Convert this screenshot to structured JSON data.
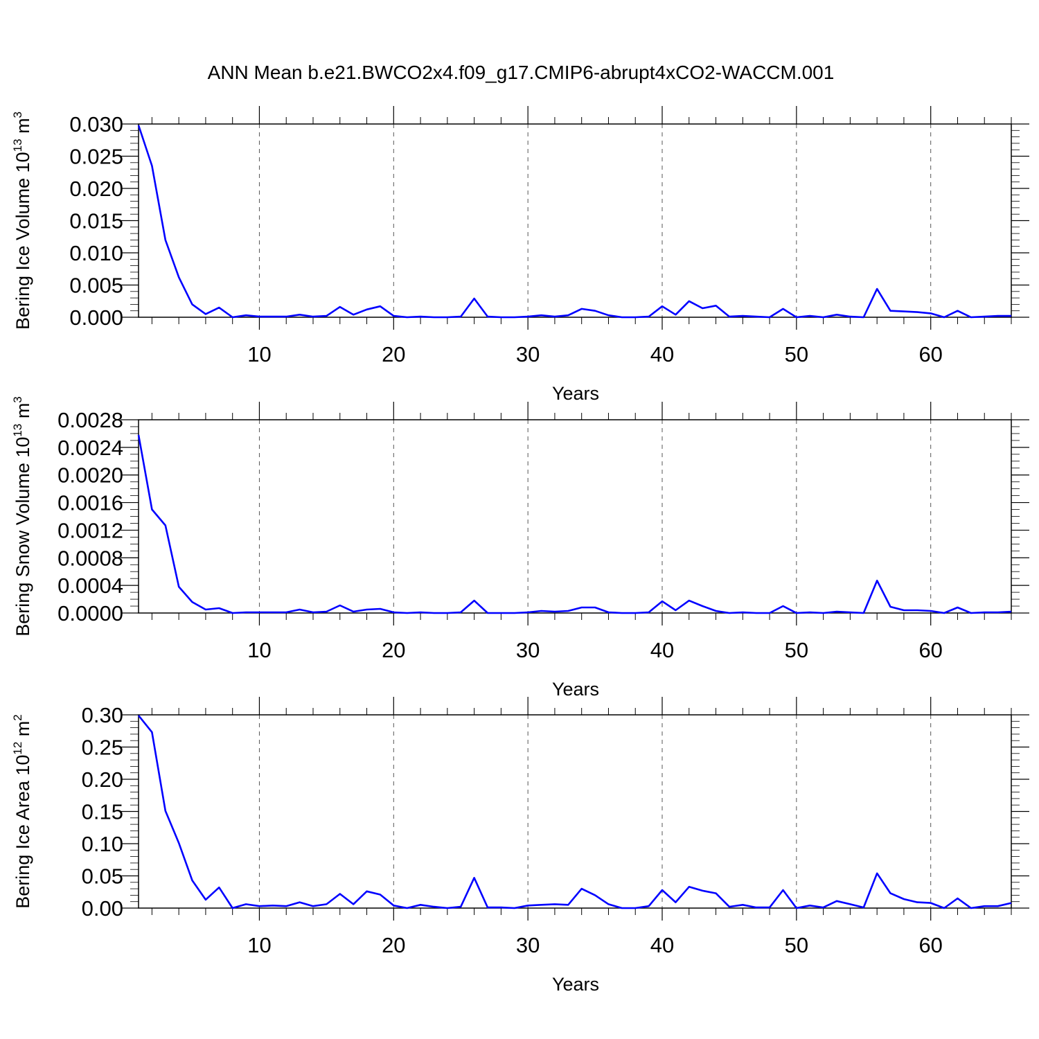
{
  "title": "ANN Mean b.e21.BWCO2x4.f09_g17.CMIP6-abrupt4xCO2-WACCM.001",
  "series_color": "#0000ff",
  "chart_data": [
    {
      "type": "line",
      "ylabel": {
        "text": "Bering Ice Volume 10",
        "exp": "13",
        "unit": " m",
        "unit_exp": "3"
      },
      "xlabel": "Years",
      "xlim": [
        1,
        66
      ],
      "ylim": [
        0,
        0.03
      ],
      "xticks": [
        10,
        20,
        30,
        40,
        50,
        60
      ],
      "xtick_labels": [
        "10",
        "20",
        "30",
        "40",
        "50",
        "60"
      ],
      "yticks": [
        0,
        0.005,
        0.01,
        0.015,
        0.02,
        0.025,
        0.03
      ],
      "ytick_labels": [
        "0.000",
        "0.005",
        "0.010",
        "0.015",
        "0.020",
        "0.025",
        "0.030"
      ],
      "yminor_step": 0.001,
      "grid": "x-dashed",
      "x": [
        1,
        2,
        3,
        4,
        5,
        6,
        7,
        8,
        9,
        10,
        11,
        12,
        13,
        14,
        15,
        16,
        17,
        18,
        19,
        20,
        21,
        22,
        23,
        24,
        25,
        26,
        27,
        28,
        29,
        30,
        31,
        32,
        33,
        34,
        35,
        36,
        37,
        38,
        39,
        40,
        41,
        42,
        43,
        44,
        45,
        46,
        47,
        48,
        49,
        50,
        51,
        52,
        53,
        54,
        55,
        56,
        57,
        58,
        59,
        60,
        61,
        62,
        63,
        64,
        65,
        66
      ],
      "values": [
        0.0298,
        0.0235,
        0.012,
        0.0062,
        0.002,
        0.0005,
        0.0015,
        0.0,
        0.0003,
        0.0001,
        0.0001,
        0.0001,
        0.0004,
        0.0001,
        0.0002,
        0.0016,
        0.0004,
        0.0012,
        0.0017,
        0.0002,
        0.0,
        0.0001,
        0.0,
        0.0,
        0.0001,
        0.0029,
        0.0001,
        0.0,
        0.0,
        0.0001,
        0.0003,
        0.0001,
        0.0003,
        0.0013,
        0.001,
        0.0003,
        0.0,
        0.0,
        0.0001,
        0.0017,
        0.0004,
        0.0025,
        0.0014,
        0.0018,
        0.0001,
        0.0002,
        0.0001,
        0.0,
        0.0013,
        0.0,
        0.0002,
        0.0,
        0.0004,
        0.0001,
        0.0,
        0.0044,
        0.001,
        0.0009,
        0.0008,
        0.0006,
        0.0,
        0.001,
        0.0,
        0.0001,
        0.0002,
        0.0002
      ]
    },
    {
      "type": "line",
      "ylabel": {
        "text": "Bering Snow Volume 10",
        "exp": "13",
        "unit": " m",
        "unit_exp": "3"
      },
      "xlabel": "Years",
      "xlim": [
        1,
        66
      ],
      "ylim": [
        0,
        0.0028
      ],
      "xticks": [
        10,
        20,
        30,
        40,
        50,
        60
      ],
      "xtick_labels": [
        "10",
        "20",
        "30",
        "40",
        "50",
        "60"
      ],
      "yticks": [
        0,
        0.0004,
        0.0008,
        0.0012,
        0.0016,
        0.002,
        0.0024,
        0.0028
      ],
      "ytick_labels": [
        "0.0000",
        "0.0004",
        "0.0008",
        "0.0012",
        "0.0016",
        "0.0020",
        "0.0024",
        "0.0028"
      ],
      "yminor_step": 0.0001,
      "grid": "x-dashed",
      "x": [
        1,
        2,
        3,
        4,
        5,
        6,
        7,
        8,
        9,
        10,
        11,
        12,
        13,
        14,
        15,
        16,
        17,
        18,
        19,
        20,
        21,
        22,
        23,
        24,
        25,
        26,
        27,
        28,
        29,
        30,
        31,
        32,
        33,
        34,
        35,
        36,
        37,
        38,
        39,
        40,
        41,
        42,
        43,
        44,
        45,
        46,
        47,
        48,
        49,
        50,
        51,
        52,
        53,
        54,
        55,
        56,
        57,
        58,
        59,
        60,
        61,
        62,
        63,
        64,
        65,
        66
      ],
      "values": [
        0.00258,
        0.0015,
        0.00127,
        0.00038,
        0.00016,
        5e-05,
        7e-05,
        0.0,
        1e-05,
        1e-05,
        1e-05,
        1e-05,
        5e-05,
        1e-05,
        2e-05,
        0.00011,
        2e-05,
        5e-05,
        6e-05,
        1e-05,
        0.0,
        1e-05,
        0.0,
        0.0,
        1e-05,
        0.00018,
        0.0,
        0.0,
        0.0,
        1e-05,
        3e-05,
        2e-05,
        3e-05,
        8e-05,
        8e-05,
        1e-05,
        0.0,
        0.0,
        1e-05,
        0.00017,
        4e-05,
        0.00018,
        0.0001,
        3e-05,
        0.0,
        1e-05,
        0.0,
        0.0,
        0.0001,
        0.0,
        1e-05,
        0.0,
        2e-05,
        1e-05,
        0.0,
        0.00047,
        9e-05,
        4e-05,
        4e-05,
        3e-05,
        0.0,
        8e-05,
        0.0,
        1e-05,
        1e-05,
        2e-05
      ]
    },
    {
      "type": "line",
      "ylabel": {
        "text": "Bering Ice Area 10",
        "exp": "12",
        "unit": " m",
        "unit_exp": "2"
      },
      "xlabel": "Years",
      "xlim": [
        1,
        66
      ],
      "ylim": [
        0,
        0.3
      ],
      "xticks": [
        10,
        20,
        30,
        40,
        50,
        60
      ],
      "xtick_labels": [
        "10",
        "20",
        "30",
        "40",
        "50",
        "60"
      ],
      "yticks": [
        0,
        0.05,
        0.1,
        0.15,
        0.2,
        0.25,
        0.3
      ],
      "ytick_labels": [
        "0.00",
        "0.05",
        "0.10",
        "0.15",
        "0.20",
        "0.25",
        "0.30"
      ],
      "yminor_step": 0.01,
      "grid": "x-dashed",
      "x": [
        1,
        2,
        3,
        4,
        5,
        6,
        7,
        8,
        9,
        10,
        11,
        12,
        13,
        14,
        15,
        16,
        17,
        18,
        19,
        20,
        21,
        22,
        23,
        24,
        25,
        26,
        27,
        28,
        29,
        30,
        31,
        32,
        33,
        34,
        35,
        36,
        37,
        38,
        39,
        40,
        41,
        42,
        43,
        44,
        45,
        46,
        47,
        48,
        49,
        50,
        51,
        52,
        53,
        54,
        55,
        56,
        57,
        58,
        59,
        60,
        61,
        62,
        63,
        64,
        65,
        66
      ],
      "values": [
        0.299,
        0.273,
        0.151,
        0.101,
        0.043,
        0.013,
        0.032,
        0.0,
        0.006,
        0.003,
        0.004,
        0.003,
        0.009,
        0.003,
        0.006,
        0.022,
        0.006,
        0.026,
        0.021,
        0.004,
        0.0,
        0.005,
        0.002,
        0.0,
        0.002,
        0.047,
        0.001,
        0.001,
        0.0,
        0.004,
        0.005,
        0.006,
        0.005,
        0.03,
        0.02,
        0.006,
        0.0,
        0.0,
        0.003,
        0.028,
        0.009,
        0.033,
        0.027,
        0.023,
        0.002,
        0.005,
        0.001,
        0.001,
        0.028,
        0.0,
        0.004,
        0.001,
        0.011,
        0.006,
        0.001,
        0.054,
        0.023,
        0.014,
        0.009,
        0.008,
        0.0,
        0.015,
        0.0,
        0.003,
        0.003,
        0.008
      ]
    }
  ]
}
